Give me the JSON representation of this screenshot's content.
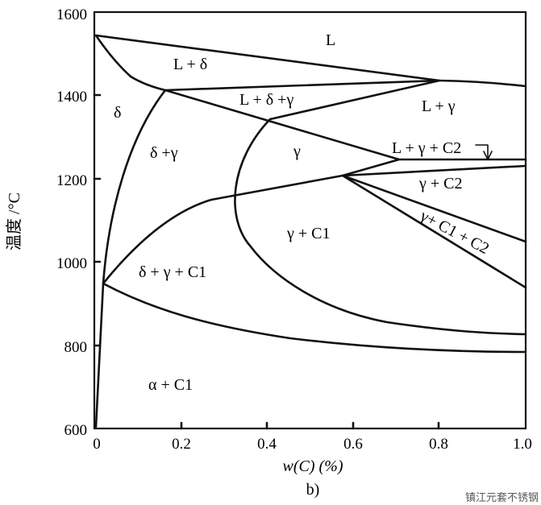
{
  "chart_data": {
    "type": "phase-diagram",
    "caption": "b)",
    "xlabel": "w(C) (%)",
    "ylabel": "温度 /°C",
    "xlim": [
      0,
      1.0
    ],
    "ylim": [
      600,
      1600
    ],
    "x_ticks": [
      "0",
      "0.2",
      "0.4",
      "0.6",
      "0.8",
      "1.0"
    ],
    "y_ticks": [
      "600",
      "800",
      "1000",
      "1200",
      "1400",
      "1600"
    ],
    "regions": [
      "L",
      "L + δ",
      "δ",
      "L + δ +γ",
      "L + γ",
      "δ +γ",
      "γ",
      "L + γ + C2",
      "γ + C2",
      "γ + C1",
      "γ+ C1 + C2",
      "δ + γ + C1",
      "α + C1"
    ]
  },
  "watermark": "镇江元套不锈钢"
}
